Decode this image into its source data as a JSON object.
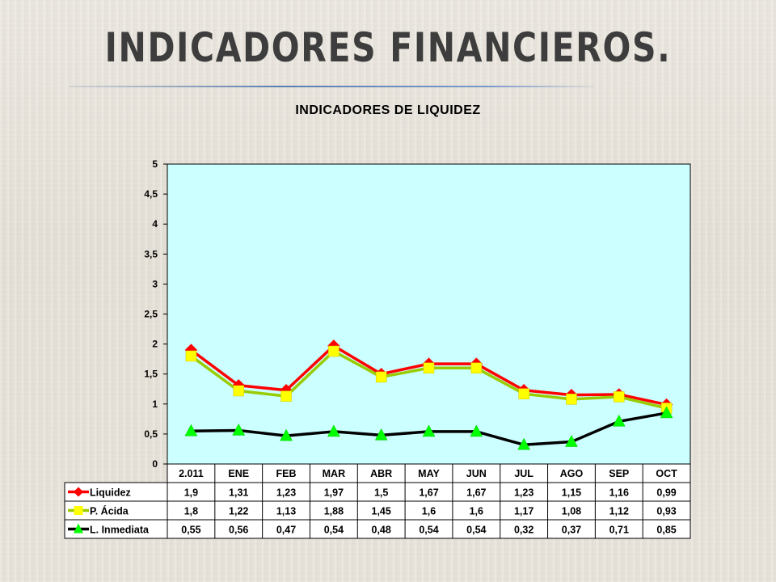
{
  "slide": {
    "title": "INDICADORES FINANCIEROS."
  },
  "chart_data": {
    "type": "line",
    "title": "INDICADORES DE LIQUIDEZ",
    "categories": [
      "2.011",
      "ENE",
      "FEB",
      "MAR",
      "ABR",
      "MAY",
      "JUN",
      "JUL",
      "AGO",
      "SEP",
      "OCT"
    ],
    "ylim": [
      0,
      5
    ],
    "yticks": [
      "0",
      "0,5",
      "1",
      "1,5",
      "2",
      "2,5",
      "3",
      "3,5",
      "4",
      "4,5",
      "5"
    ],
    "plot_background": "#ccffff",
    "series": [
      {
        "name": "Liquidez",
        "color": "#ff0000",
        "marker": "diamond",
        "marker_color": "#ff0000",
        "values": [
          1.9,
          1.31,
          1.23,
          1.97,
          1.5,
          1.67,
          1.67,
          1.23,
          1.15,
          1.16,
          0.99
        ],
        "labels": [
          "1,9",
          "1,31",
          "1,23",
          "1,97",
          "1,5",
          "1,67",
          "1,67",
          "1,23",
          "1,15",
          "1,16",
          "0,99"
        ]
      },
      {
        "name": "P. Ácida",
        "color": "#99cc00",
        "marker": "square",
        "marker_color": "#ffff00",
        "values": [
          1.8,
          1.22,
          1.13,
          1.88,
          1.45,
          1.6,
          1.6,
          1.17,
          1.08,
          1.12,
          0.93
        ],
        "labels": [
          "1,8",
          "1,22",
          "1,13",
          "1,88",
          "1,45",
          "1,6",
          "1,6",
          "1,17",
          "1,08",
          "1,12",
          "0,93"
        ]
      },
      {
        "name": "L. Inmediata",
        "color": "#000000",
        "marker": "triangle",
        "marker_color": "#00ff00",
        "values": [
          0.55,
          0.56,
          0.47,
          0.54,
          0.48,
          0.54,
          0.54,
          0.32,
          0.37,
          0.71,
          0.85
        ],
        "labels": [
          "0,55",
          "0,56",
          "0,47",
          "0,54",
          "0,48",
          "0,54",
          "0,54",
          "0,32",
          "0,37",
          "0,71",
          "0,85"
        ]
      }
    ],
    "grid": false,
    "legend": "data-table-left"
  }
}
